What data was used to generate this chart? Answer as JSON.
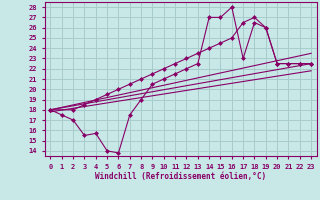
{
  "xlabel": "Windchill (Refroidissement éolien,°C)",
  "bg_color": "#c8e8e8",
  "grid_color": "#a8cccc",
  "line_color": "#880066",
  "xlim": [
    -0.5,
    23.5
  ],
  "ylim": [
    13.5,
    28.5
  ],
  "xticks": [
    0,
    1,
    2,
    3,
    4,
    5,
    6,
    7,
    8,
    9,
    10,
    11,
    12,
    13,
    14,
    15,
    16,
    17,
    18,
    19,
    20,
    21,
    22,
    23
  ],
  "yticks": [
    14,
    15,
    16,
    17,
    18,
    19,
    20,
    21,
    22,
    23,
    24,
    25,
    26,
    27,
    28
  ],
  "jagged1_x": [
    0,
    1,
    2,
    3,
    4,
    5,
    6,
    7,
    8,
    9,
    10,
    11,
    12,
    13,
    14,
    15,
    16,
    17,
    18,
    19,
    20,
    21,
    22,
    23
  ],
  "jagged1_y": [
    18.0,
    17.5,
    17.0,
    15.5,
    15.7,
    14.0,
    13.8,
    17.5,
    19.0,
    20.5,
    21.0,
    21.5,
    22.0,
    22.5,
    27.0,
    27.0,
    28.0,
    23.0,
    26.5,
    26.0,
    22.5,
    22.5,
    22.5,
    22.5
  ],
  "jagged2_x": [
    0,
    2,
    3,
    4,
    5,
    6,
    7,
    8,
    9,
    10,
    11,
    12,
    13,
    14,
    15,
    16,
    17,
    18,
    19,
    20,
    21,
    22,
    23
  ],
  "jagged2_y": [
    18.0,
    18.0,
    18.5,
    19.0,
    19.5,
    20.0,
    20.5,
    21.0,
    21.5,
    22.0,
    22.5,
    23.0,
    23.5,
    24.0,
    24.5,
    25.0,
    26.5,
    27.0,
    26.0,
    22.5,
    22.5,
    22.5,
    22.5
  ],
  "line1_x": [
    0,
    23
  ],
  "line1_y": [
    17.8,
    21.8
  ],
  "line2_x": [
    0,
    23
  ],
  "line2_y": [
    18.0,
    22.5
  ],
  "line3_x": [
    0,
    23
  ],
  "line3_y": [
    18.0,
    23.5
  ]
}
